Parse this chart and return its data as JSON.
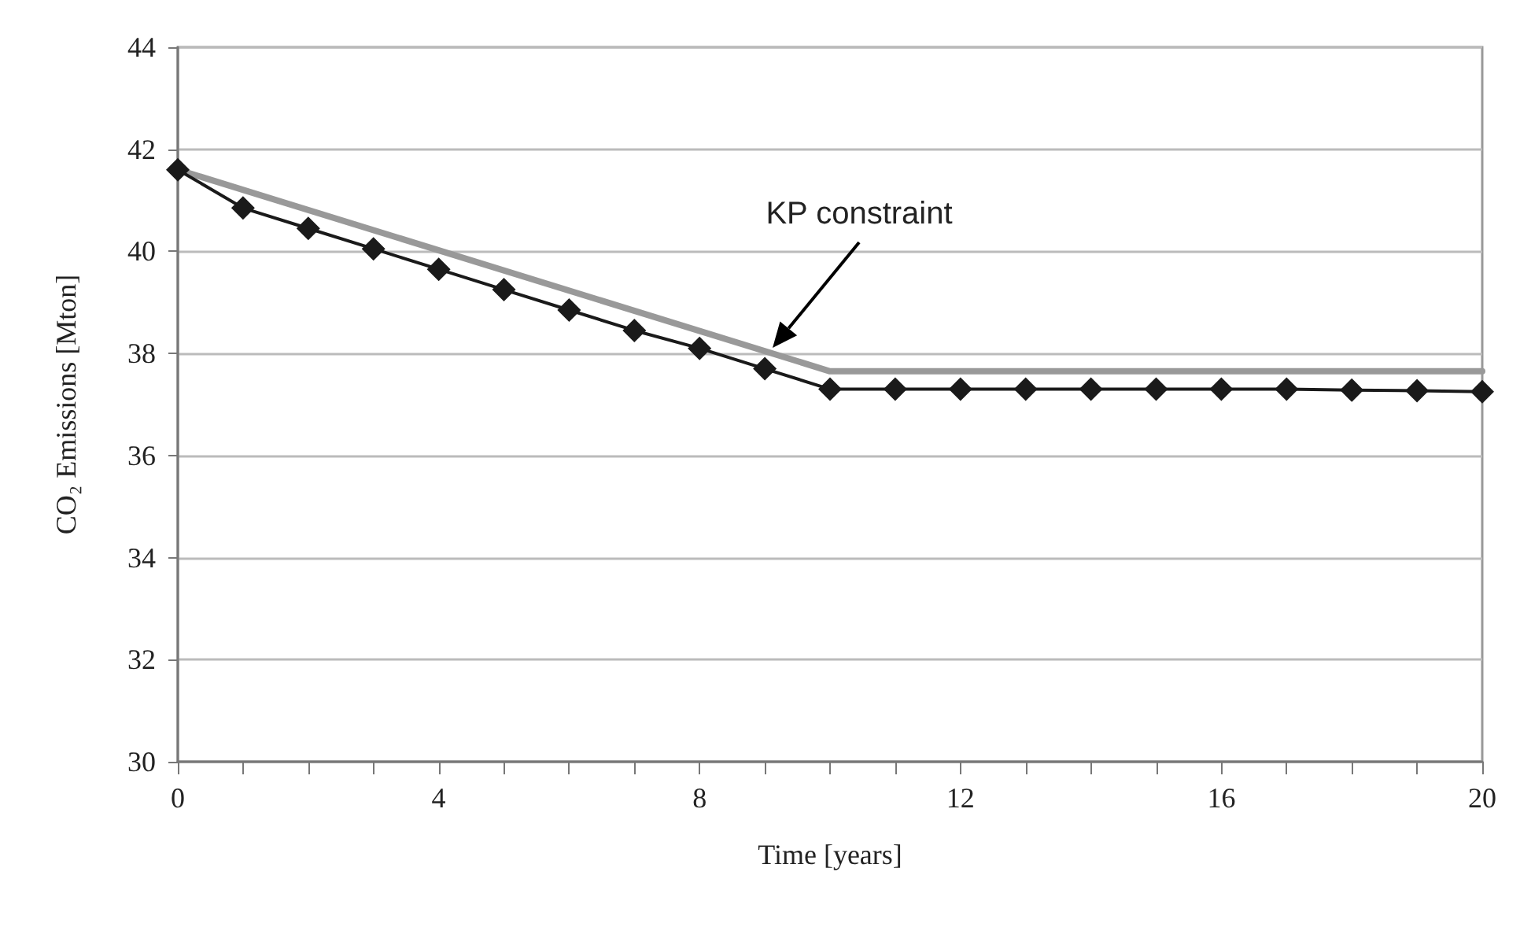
{
  "chart_data": {
    "type": "line",
    "xlabel": "Time [years]",
    "ylabel": "CO₂ Emissions [Mton]",
    "xlim": [
      0,
      20
    ],
    "xticks": [
      0,
      {
        "value": 1,
        "label": null
      },
      {
        "value": 2,
        "label": null
      },
      {
        "value": 3,
        "label": null
      },
      4,
      {
        "value": 5,
        "label": null
      },
      {
        "value": 6,
        "label": null
      },
      {
        "value": 7,
        "label": null
      },
      8,
      {
        "value": 9,
        "label": null
      },
      {
        "value": 10,
        "label": null
      },
      {
        "value": 11,
        "label": null
      },
      12,
      {
        "value": 13,
        "label": null
      },
      {
        "value": 14,
        "label": null
      },
      {
        "value": 15,
        "label": null
      },
      16,
      {
        "value": 17,
        "label": null
      },
      {
        "value": 18,
        "label": null
      },
      {
        "value": 19,
        "label": null
      },
      20
    ],
    "ylim": [
      30,
      44
    ],
    "yticks": [
      30,
      32,
      34,
      36,
      38,
      40,
      42,
      44
    ],
    "grid": "y",
    "series": [
      {
        "color": "#999999",
        "x": [
          0,
          10,
          20
        ],
        "values": [
          41.6,
          37.65,
          37.65
        ],
        "marker": "none"
      },
      {
        "color": "#1a1a1a",
        "x": [
          0,
          1,
          2,
          3,
          4,
          5,
          6,
          7,
          8,
          9,
          10,
          11,
          12,
          13,
          14,
          15,
          16,
          17,
          18,
          19,
          20
        ],
        "values": [
          41.6,
          40.85,
          40.45,
          40.05,
          39.65,
          39.25,
          38.85,
          38.45,
          38.1,
          37.7,
          37.3,
          37.3,
          37.3,
          37.3,
          37.3,
          37.3,
          37.3,
          37.3,
          37.28,
          37.27,
          37.25
        ],
        "marker": "diamond"
      }
    ],
    "annotations": [
      "KP constraint"
    ]
  }
}
